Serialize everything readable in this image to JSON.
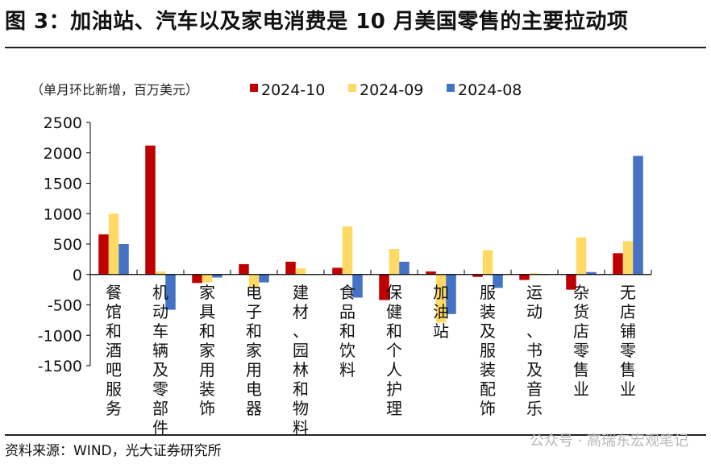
{
  "title": "图 3：加油站、汽车以及家电消费是 10 月美国零售的主要拉动项",
  "source": "资料来源：WIND，光大证券研究所",
  "watermark": "公众号 · 高瑞东宏观笔记",
  "chart_data": {
    "type": "bar",
    "unit_label": "（单月环比新增，百万美元）",
    "categories": [
      "餐馆和酒吧服务",
      "机动车辆及零部件",
      "家具和家用装饰",
      "电子和家用电器",
      "建材、园林和物料",
      "食品和饮料",
      "保健和个人护理",
      "加油站",
      "服装及服装配饰",
      "运动、书及音乐",
      "杂货店零售业",
      "无店铺零售业"
    ],
    "series": [
      {
        "name": "2024-10",
        "color": "#c00000",
        "values": [
          660,
          2120,
          -140,
          170,
          210,
          110,
          -420,
          50,
          -40,
          -90,
          -250,
          350
        ]
      },
      {
        "name": "2024-09",
        "color": "#ffd966",
        "values": [
          1000,
          50,
          -130,
          -230,
          100,
          790,
          420,
          -790,
          400,
          20,
          610,
          550
        ]
      },
      {
        "name": "2024-08",
        "color": "#4472c4",
        "values": [
          500,
          -580,
          -50,
          -130,
          0,
          -380,
          210,
          -650,
          -220,
          10,
          40,
          1950
        ]
      }
    ],
    "ylim": [
      -1500,
      2500
    ],
    "yticks": [
      2500,
      2000,
      1500,
      1000,
      500,
      0,
      -500,
      -1000,
      -1500
    ],
    "legend": "top",
    "grid": false
  }
}
